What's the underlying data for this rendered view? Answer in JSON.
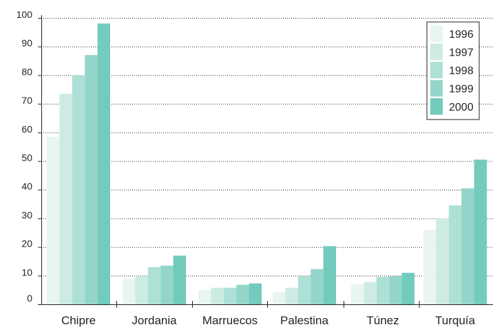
{
  "chart_data": {
    "type": "bar",
    "categories": [
      "Chipre",
      "Jordania",
      "Marruecos",
      "Palestina",
      "Túnez",
      "Turquía"
    ],
    "series": [
      {
        "name": "1996",
        "color": "#e8f5f2",
        "values": [
          58.5,
          9,
          5,
          4.3,
          7,
          26
        ]
      },
      {
        "name": "1997",
        "color": "#cdebe3",
        "values": [
          73.5,
          9.8,
          5.8,
          5.8,
          7.8,
          30
        ]
      },
      {
        "name": "1998",
        "color": "#aee0d6",
        "values": [
          80,
          13,
          5.8,
          9.8,
          9.6,
          34.5
        ]
      },
      {
        "name": "1999",
        "color": "#93d6c9",
        "values": [
          87,
          13.5,
          6.8,
          12.3,
          9.8,
          40.5
        ]
      },
      {
        "name": "2000",
        "color": "#72cbbc",
        "values": [
          98,
          17,
          7.3,
          20.3,
          11,
          50.5
        ]
      }
    ],
    "y_ticks": [
      0,
      10,
      20,
      30,
      40,
      50,
      60,
      70,
      80,
      90,
      100
    ],
    "ylim": [
      0,
      100
    ],
    "grid": "horizontal dotted",
    "legend_position": "top-right",
    "title": "",
    "xlabel": "",
    "ylabel": ""
  }
}
